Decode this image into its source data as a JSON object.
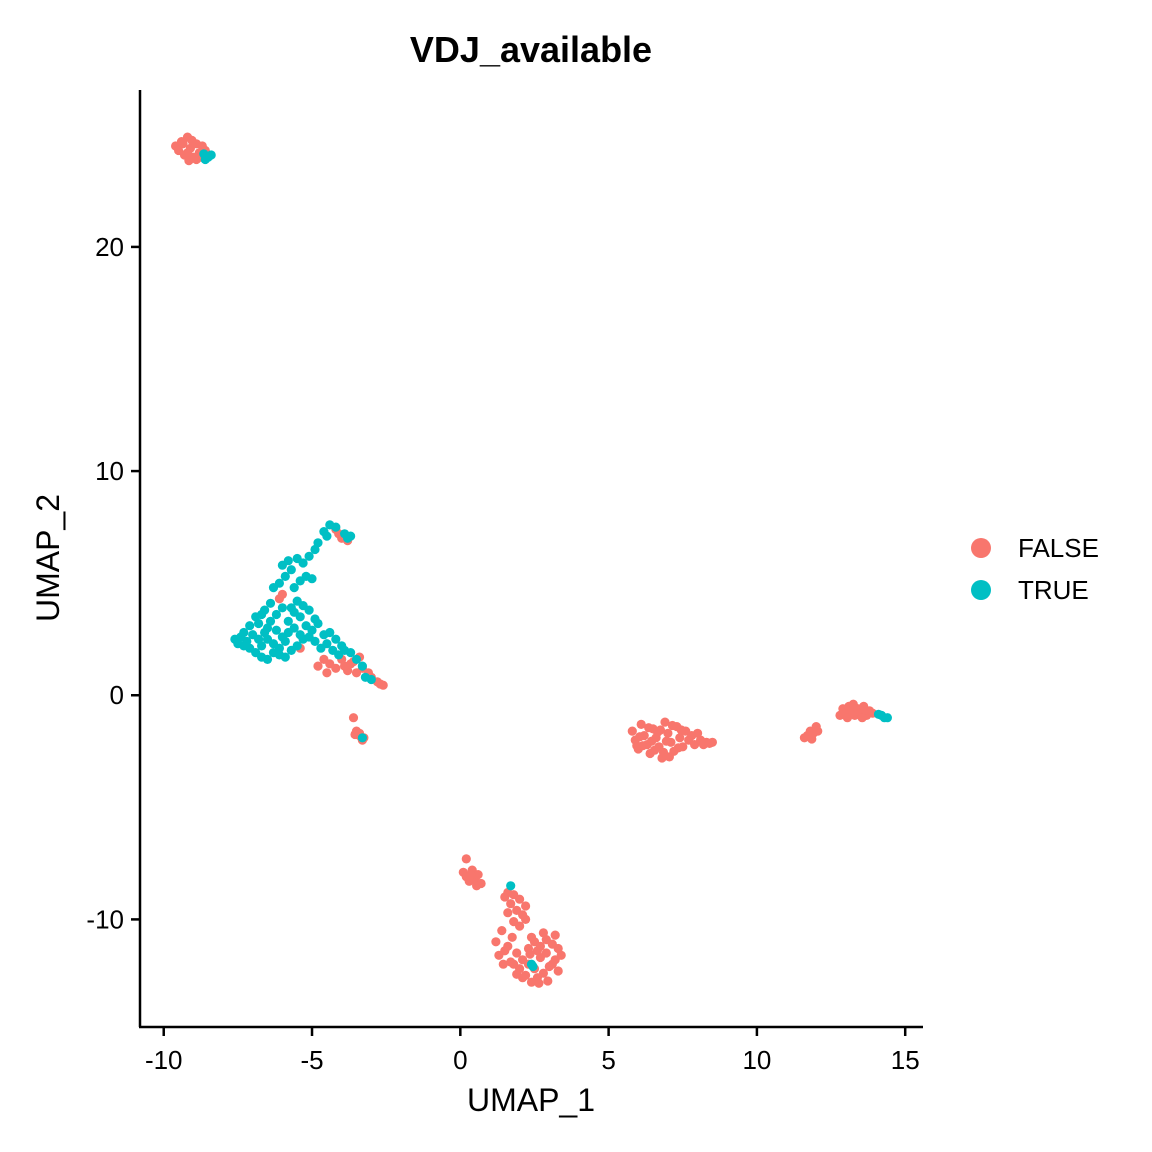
{
  "chart_data": {
    "type": "scatter",
    "title": "VDJ_available",
    "xlabel": "UMAP_1",
    "ylabel": "UMAP_2",
    "xlim": [
      -10.8,
      15.6
    ],
    "ylim": [
      -14.8,
      27
    ],
    "xticks": [
      -10,
      -5,
      0,
      5,
      10,
      15
    ],
    "yticks": [
      -10,
      0,
      10,
      20
    ],
    "xtick_labels": [
      "-10",
      "-5",
      "0",
      "5",
      "10",
      "15"
    ],
    "ytick_labels": [
      "-10",
      "0",
      "10",
      "20"
    ],
    "grid": false,
    "legend": "right",
    "series": [
      {
        "name": "FALSE",
        "color": "#F8766D",
        "points": [
          [
            -9.6,
            24.5
          ],
          [
            -9.5,
            24.3
          ],
          [
            -9.4,
            24.7
          ],
          [
            -9.3,
            24.1
          ],
          [
            -9.2,
            24.9
          ],
          [
            -9.1,
            24.4
          ],
          [
            -9.0,
            24.0
          ],
          [
            -8.9,
            24.6
          ],
          [
            -8.8,
            24.2
          ],
          [
            -8.7,
            24.5
          ],
          [
            -8.9,
            23.9
          ],
          [
            -9.2,
            24.2
          ],
          [
            -8.6,
            24.3
          ],
          [
            -8.75,
            24.0
          ],
          [
            -9.35,
            24.6
          ],
          [
            -9.05,
            24.75
          ],
          [
            -8.5,
            24.1
          ],
          [
            -9.15,
            23.85
          ],
          [
            -4.2,
            7.4
          ],
          [
            -4.0,
            7.0
          ],
          [
            -3.8,
            6.9
          ],
          [
            -4.1,
            7.2
          ],
          [
            -6.0,
            4.5
          ],
          [
            -6.1,
            4.3
          ],
          [
            -5.4,
            2.1
          ],
          [
            -4.6,
            1.6
          ],
          [
            -4.4,
            1.4
          ],
          [
            -4.2,
            1.2
          ],
          [
            -4.0,
            1.6
          ],
          [
            -3.8,
            1.1
          ],
          [
            -3.6,
            1.5
          ],
          [
            -3.9,
            1.3
          ],
          [
            -3.5,
            1.0
          ],
          [
            -3.4,
            1.7
          ],
          [
            -3.3,
            1.2
          ],
          [
            -3.1,
            1.0
          ],
          [
            -3.0,
            0.8
          ],
          [
            -2.8,
            0.6
          ],
          [
            -2.7,
            0.5
          ],
          [
            -2.6,
            0.45
          ],
          [
            -4.8,
            1.3
          ],
          [
            -4.5,
            1.0
          ],
          [
            -3.7,
            1.4
          ],
          [
            -3.6,
            -1.0
          ],
          [
            -3.5,
            -1.6
          ],
          [
            -3.4,
            -1.8
          ],
          [
            -3.3,
            -2.0
          ],
          [
            -3.4,
            -1.7
          ],
          [
            -3.25,
            -1.9
          ],
          [
            -3.55,
            -1.75
          ],
          [
            5.8,
            -1.6
          ],
          [
            5.9,
            -2.0
          ],
          [
            6.0,
            -2.4
          ],
          [
            6.1,
            -1.3
          ],
          [
            6.2,
            -1.8
          ],
          [
            6.3,
            -2.2
          ],
          [
            6.4,
            -2.6
          ],
          [
            6.5,
            -1.5
          ],
          [
            6.6,
            -1.9
          ],
          [
            6.7,
            -2.3
          ],
          [
            6.8,
            -2.8
          ],
          [
            6.9,
            -1.2
          ],
          [
            7.0,
            -1.7
          ],
          [
            7.1,
            -2.1
          ],
          [
            7.2,
            -2.5
          ],
          [
            7.3,
            -1.4
          ],
          [
            7.4,
            -1.9
          ],
          [
            7.5,
            -2.3
          ],
          [
            7.6,
            -1.6
          ],
          [
            7.7,
            -2.0
          ],
          [
            7.8,
            -1.8
          ],
          [
            7.9,
            -2.2
          ],
          [
            8.0,
            -1.7
          ],
          [
            8.1,
            -2.0
          ],
          [
            8.2,
            -2.2
          ],
          [
            8.3,
            -2.1
          ],
          [
            8.4,
            -2.15
          ],
          [
            8.5,
            -2.1
          ],
          [
            6.05,
            -1.85
          ],
          [
            6.35,
            -1.45
          ],
          [
            6.55,
            -2.45
          ],
          [
            6.75,
            -1.55
          ],
          [
            6.95,
            -2.05
          ],
          [
            7.15,
            -1.35
          ],
          [
            7.35,
            -2.35
          ],
          [
            6.15,
            -2.25
          ],
          [
            6.45,
            -2.05
          ],
          [
            6.85,
            -2.55
          ],
          [
            7.05,
            -2.75
          ],
          [
            7.45,
            -1.55
          ],
          [
            5.95,
            -2.25
          ],
          [
            6.65,
            -1.65
          ],
          [
            11.6,
            -1.9
          ],
          [
            11.7,
            -1.8
          ],
          [
            11.8,
            -1.6
          ],
          [
            11.9,
            -1.7
          ],
          [
            12.0,
            -1.4
          ],
          [
            11.85,
            -1.95
          ],
          [
            12.05,
            -1.6
          ],
          [
            12.8,
            -0.9
          ],
          [
            12.9,
            -0.6
          ],
          [
            13.0,
            -0.8
          ],
          [
            13.1,
            -0.5
          ],
          [
            13.2,
            -0.7
          ],
          [
            13.3,
            -0.9
          ],
          [
            13.4,
            -0.6
          ],
          [
            13.5,
            -0.8
          ],
          [
            13.6,
            -0.5
          ],
          [
            13.7,
            -0.9
          ],
          [
            13.8,
            -0.7
          ],
          [
            13.9,
            -0.8
          ],
          [
            13.05,
            -1.0
          ],
          [
            13.25,
            -0.4
          ],
          [
            13.55,
            -1.0
          ],
          [
            13.65,
            -0.65
          ],
          [
            0.2,
            -7.3
          ],
          [
            0.1,
            -7.9
          ],
          [
            0.2,
            -8.1
          ],
          [
            0.3,
            -8.3
          ],
          [
            0.4,
            -7.8
          ],
          [
            0.5,
            -8.2
          ],
          [
            0.6,
            -8.0
          ],
          [
            0.7,
            -8.4
          ],
          [
            0.35,
            -8.0
          ],
          [
            0.55,
            -8.5
          ],
          [
            1.5,
            -9.0
          ],
          [
            1.6,
            -8.8
          ],
          [
            1.7,
            -9.3
          ],
          [
            1.8,
            -8.9
          ],
          [
            1.9,
            -9.6
          ],
          [
            2.0,
            -9.1
          ],
          [
            2.1,
            -9.8
          ],
          [
            2.2,
            -9.4
          ],
          [
            1.6,
            -9.7
          ],
          [
            1.8,
            -10.1
          ],
          [
            2.0,
            -10.3
          ],
          [
            2.2,
            -10.0
          ],
          [
            1.4,
            -10.5
          ],
          [
            1.2,
            -11.0
          ],
          [
            1.3,
            -11.6
          ],
          [
            1.5,
            -11.4
          ],
          [
            1.7,
            -11.9
          ],
          [
            1.9,
            -11.5
          ],
          [
            2.1,
            -11.8
          ],
          [
            2.3,
            -11.3
          ],
          [
            2.5,
            -11.0
          ],
          [
            2.7,
            -11.2
          ],
          [
            2.9,
            -10.9
          ],
          [
            3.1,
            -11.1
          ],
          [
            3.3,
            -11.3
          ],
          [
            3.2,
            -11.8
          ],
          [
            3.0,
            -12.1
          ],
          [
            2.8,
            -12.4
          ],
          [
            2.6,
            -12.6
          ],
          [
            2.4,
            -12.8
          ],
          [
            2.2,
            -12.5
          ],
          [
            2.0,
            -12.2
          ],
          [
            1.8,
            -12.0
          ],
          [
            2.5,
            -12.2
          ],
          [
            2.7,
            -11.7
          ],
          [
            2.9,
            -11.5
          ],
          [
            3.1,
            -12.0
          ],
          [
            3.3,
            -12.3
          ],
          [
            2.3,
            -12.0
          ],
          [
            2.1,
            -12.6
          ],
          [
            2.6,
            -11.4
          ],
          [
            2.4,
            -10.8
          ],
          [
            2.8,
            -10.6
          ],
          [
            1.6,
            -11.2
          ],
          [
            3.4,
            -11.6
          ],
          [
            2.95,
            -12.75
          ],
          [
            2.65,
            -12.85
          ],
          [
            1.45,
            -12.0
          ],
          [
            1.75,
            -10.8
          ],
          [
            2.35,
            -11.55
          ],
          [
            3.2,
            -10.7
          ],
          [
            1.9,
            -12.45
          ]
        ]
      },
      {
        "name": "TRUE",
        "color": "#00BFC4",
        "points": [
          [
            -8.4,
            24.1
          ],
          [
            -8.6,
            23.9
          ],
          [
            -8.5,
            24.0
          ],
          [
            -8.65,
            24.15
          ],
          [
            -4.6,
            7.3
          ],
          [
            -4.4,
            7.6
          ],
          [
            -4.2,
            7.5
          ],
          [
            -4.5,
            7.1
          ],
          [
            -4.8,
            6.8
          ],
          [
            -4.9,
            6.5
          ],
          [
            -5.1,
            6.2
          ],
          [
            -5.3,
            5.9
          ],
          [
            -5.2,
            5.3
          ],
          [
            -5.4,
            5.1
          ],
          [
            -5.6,
            4.8
          ],
          [
            -5.8,
            6.0
          ],
          [
            -5.7,
            5.6
          ],
          [
            -5.9,
            5.3
          ],
          [
            -6.1,
            5.0
          ],
          [
            -6.3,
            4.8
          ],
          [
            -6.0,
            5.8
          ],
          [
            -5.5,
            6.1
          ],
          [
            -3.9,
            7.2
          ],
          [
            -3.7,
            7.1
          ],
          [
            -3.8,
            7.0
          ],
          [
            -5.0,
            5.2
          ],
          [
            -6.4,
            3.3
          ],
          [
            -6.6,
            2.8
          ],
          [
            -6.8,
            2.5
          ],
          [
            -7.0,
            2.7
          ],
          [
            -7.2,
            2.4
          ],
          [
            -7.4,
            2.6
          ],
          [
            -7.6,
            2.5
          ],
          [
            -7.5,
            2.3
          ],
          [
            -7.3,
            2.8
          ],
          [
            -7.1,
            2.1
          ],
          [
            -6.9,
            1.9
          ],
          [
            -6.7,
            1.7
          ],
          [
            -6.5,
            1.6
          ],
          [
            -6.3,
            1.9
          ],
          [
            -6.1,
            2.1
          ],
          [
            -5.9,
            2.4
          ],
          [
            -5.7,
            2.0
          ],
          [
            -5.5,
            2.2
          ],
          [
            -5.3,
            2.5
          ],
          [
            -5.1,
            2.6
          ],
          [
            -4.9,
            2.4
          ],
          [
            -4.7,
            2.1
          ],
          [
            -4.5,
            2.3
          ],
          [
            -4.3,
            2.0
          ],
          [
            -4.1,
            1.8
          ],
          [
            -3.9,
            2.0
          ],
          [
            -3.7,
            1.9
          ],
          [
            -3.5,
            1.6
          ],
          [
            -3.3,
            1.3
          ],
          [
            -3.2,
            0.8
          ],
          [
            -3.0,
            0.7
          ],
          [
            -6.2,
            3.6
          ],
          [
            -6.0,
            3.9
          ],
          [
            -5.8,
            3.3
          ],
          [
            -5.6,
            3.0
          ],
          [
            -5.4,
            3.5
          ],
          [
            -5.2,
            3.1
          ],
          [
            -5.0,
            2.9
          ],
          [
            -4.8,
            3.2
          ],
          [
            -4.6,
            2.7
          ],
          [
            -6.6,
            3.8
          ],
          [
            -6.8,
            3.2
          ],
          [
            -6.4,
            4.1
          ],
          [
            -6.2,
            2.9
          ],
          [
            -6.0,
            2.6
          ],
          [
            -5.8,
            2.8
          ],
          [
            -5.6,
            3.7
          ],
          [
            -5.4,
            2.7
          ],
          [
            -6.9,
            3.5
          ],
          [
            -7.1,
            3.1
          ],
          [
            -6.7,
            2.2
          ],
          [
            -6.5,
            2.5
          ],
          [
            -5.1,
            3.8
          ],
          [
            -4.9,
            3.4
          ],
          [
            -4.4,
            2.8
          ],
          [
            -4.2,
            2.5
          ],
          [
            -6.3,
            2.3
          ],
          [
            -6.1,
            1.8
          ],
          [
            -5.9,
            1.7
          ],
          [
            -5.3,
            4.0
          ],
          [
            -5.5,
            4.2
          ],
          [
            -5.7,
            3.9
          ],
          [
            -6.5,
            3.0
          ],
          [
            -6.7,
            3.6
          ],
          [
            -7.3,
            2.2
          ],
          [
            -4.0,
            2.2
          ],
          [
            -3.3,
            -1.9
          ],
          [
            14.3,
            -1.0
          ],
          [
            14.2,
            -0.9
          ],
          [
            14.4,
            -1.0
          ],
          [
            14.1,
            -0.85
          ],
          [
            1.7,
            -8.5
          ],
          [
            2.4,
            -12.0
          ],
          [
            2.45,
            -12.1
          ]
        ]
      }
    ]
  }
}
